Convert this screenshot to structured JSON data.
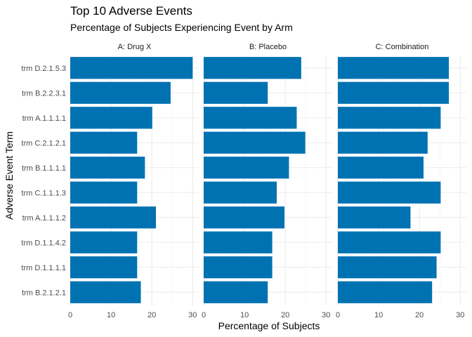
{
  "chart_data": {
    "type": "bar",
    "orientation": "horizontal",
    "title": "Top 10 Adverse Events",
    "subtitle": "Percentage of Subjects Experiencing Event by Arm",
    "xlabel": "Percentage of Subjects",
    "ylabel": "Adverse Event Term",
    "xlim": [
      0,
      31.5
    ],
    "xticks": [
      0,
      10,
      20,
      30
    ],
    "grid": true,
    "bar_color": "#0072B2",
    "categories": [
      "trm D.2.1.5.3",
      "trm B.2.2.3.1",
      "trm A.1.1.1.1",
      "trm C.2.1.2.1",
      "trm B.1.1.1.1",
      "trm C.1.1.1.3",
      "trm A.1.1.1.2",
      "trm D.1.1.4.2",
      "trm D.1.1.1.1",
      "trm B.2.1.2.1"
    ],
    "series": [
      {
        "name": "A: Drug X",
        "values": [
          30.0,
          24.6,
          20.1,
          16.4,
          18.3,
          16.4,
          21.0,
          16.4,
          16.4,
          17.3
        ]
      },
      {
        "name": "B: Placebo",
        "values": [
          23.9,
          15.7,
          22.8,
          24.9,
          20.9,
          17.9,
          19.8,
          16.8,
          16.8,
          15.7
        ]
      },
      {
        "name": "C: Combination",
        "values": [
          27.2,
          27.2,
          25.2,
          22.0,
          21.0,
          25.2,
          17.8,
          25.2,
          24.2,
          23.1
        ]
      }
    ]
  }
}
